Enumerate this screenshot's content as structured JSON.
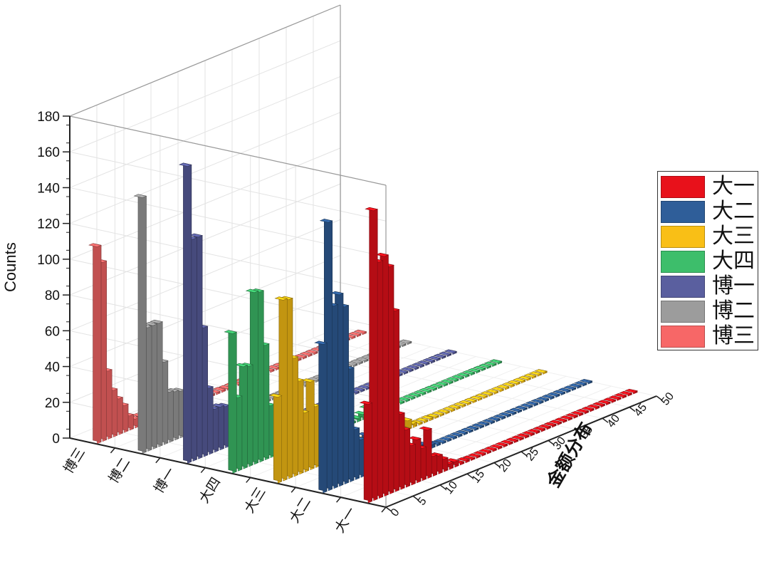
{
  "chart_data": {
    "type": "bar3d",
    "ylabel": "Counts",
    "xlabel": "金额分布",
    "zlim": [
      0,
      180
    ],
    "z_ticks": [
      0,
      20,
      40,
      60,
      80,
      100,
      120,
      140,
      160,
      180
    ],
    "x_ticks": [
      0,
      5,
      10,
      15,
      20,
      25,
      30,
      35,
      40,
      45,
      50
    ],
    "bins": [
      1,
      2,
      3,
      4,
      5,
      6,
      7,
      8,
      9,
      10,
      11,
      12,
      13,
      14,
      15,
      16,
      17,
      18,
      19,
      20,
      21,
      22,
      23,
      24,
      25,
      26,
      27,
      28,
      29,
      30,
      31,
      32,
      33,
      34,
      35,
      36,
      37,
      38,
      39,
      40,
      41,
      42,
      43,
      44,
      45,
      46,
      47,
      48,
      49,
      50
    ],
    "categories": [
      "大一",
      "大二",
      "大三",
      "大四",
      "博一",
      "博二",
      "博三"
    ],
    "depth_labels": [
      "大一",
      "大二",
      "大三",
      "大四",
      "博一",
      "博二",
      "博三"
    ],
    "grid": true,
    "legend_position": "right",
    "series": [
      {
        "name": "大一",
        "color": "#e8111b",
        "values": [
          55,
          162,
          132,
          134,
          127,
          101,
          42,
          32,
          22,
          24,
          18,
          27,
          11,
          10,
          7,
          3,
          3,
          1,
          1,
          0,
          0,
          0,
          0,
          0,
          0,
          0,
          0,
          0,
          0,
          0,
          0,
          0,
          0,
          0,
          0,
          0,
          0,
          0,
          0,
          0,
          0,
          0,
          0,
          0,
          0,
          0,
          0,
          0,
          0,
          0
        ]
      },
      {
        "name": "大二",
        "color": "#2f5e99",
        "values": [
          83,
          150,
          102,
          107,
          99,
          63,
          28,
          21,
          22,
          10,
          15,
          10,
          9,
          11,
          6,
          6,
          5,
          3,
          3,
          3,
          2,
          1,
          0,
          0,
          0,
          0,
          0,
          0,
          0,
          0,
          0,
          0,
          0,
          0,
          0,
          0,
          0,
          0,
          0,
          0,
          0,
          0,
          0,
          0,
          0,
          0,
          0,
          0,
          0,
          0
        ]
      },
      {
        "name": "大三",
        "color": "#f9bf16",
        "values": [
          48,
          101,
          100,
          66,
          52,
          33,
          49,
          34,
          30,
          23,
          17,
          13,
          5,
          8,
          6,
          6,
          4,
          4,
          5,
          3,
          2,
          3,
          2,
          2,
          5,
          2,
          1,
          1,
          1,
          0,
          0,
          0,
          0,
          0,
          0,
          0,
          0,
          0,
          0,
          0,
          0,
          0,
          0,
          0,
          0,
          0,
          0,
          0,
          0,
          0
        ]
      },
      {
        "name": "大四",
        "color": "#3dbe6b",
        "values": [
          78,
          41,
          57,
          56,
          96,
          95,
          64,
          29,
          16,
          15,
          9,
          8,
          5,
          6,
          5,
          4,
          3,
          2,
          3,
          3,
          5,
          3,
          1,
          2,
          3,
          5,
          2,
          1,
          1,
          0,
          0,
          0,
          0,
          0,
          0,
          0,
          0,
          0,
          0,
          0,
          0,
          0,
          0,
          0,
          0,
          0,
          0,
          0,
          0,
          0
        ]
      },
      {
        "name": "博一",
        "color": "#5a5f9f",
        "values": [
          166,
          124,
          124,
          72,
          37,
          24,
          24,
          23,
          12,
          6,
          5,
          7,
          3,
          2,
          1,
          2,
          1,
          1,
          1,
          1,
          1,
          1,
          0,
          0,
          0,
          0,
          0,
          0,
          0,
          0,
          0,
          0,
          0,
          0,
          0,
          0,
          0,
          0,
          0,
          0,
          0,
          0,
          0,
          0,
          0,
          0,
          0,
          0,
          0,
          0
        ]
      },
      {
        "name": "博二",
        "color": "#9c9c9c",
        "values": [
          143,
          69,
          69,
          69,
          46,
          28,
          27,
          26,
          22,
          16,
          15,
          11,
          8,
          7,
          7,
          6,
          5,
          4,
          3,
          3,
          3,
          2,
          2,
          1,
          1,
          0,
          0,
          0,
          0,
          0,
          0,
          0,
          0,
          0,
          0,
          0,
          0,
          0,
          0,
          0,
          0,
          0,
          0,
          0,
          0,
          0,
          0,
          0,
          0,
          0
        ]
      },
      {
        "name": "博三",
        "color": "#f76767",
        "values": [
          110,
          100,
          38,
          26,
          20,
          15,
          8,
          5,
          5,
          5,
          3,
          3,
          3,
          3,
          2,
          2,
          2,
          1,
          1,
          1,
          1,
          1,
          1,
          1,
          0,
          0,
          0,
          0,
          0,
          0,
          0,
          0,
          0,
          0,
          0,
          0,
          0,
          0,
          0,
          0,
          0,
          0,
          0,
          0,
          0,
          0,
          0,
          0,
          0,
          0
        ]
      }
    ]
  }
}
